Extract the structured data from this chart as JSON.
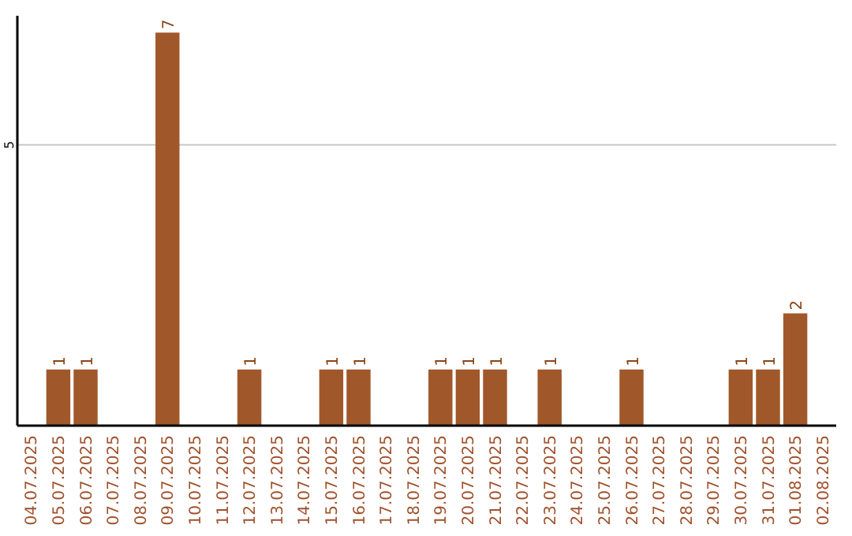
{
  "chart_data": {
    "type": "bar",
    "categories": [
      "04.07.2025",
      "05.07.2025",
      "06.07.2025",
      "07.07.2025",
      "08.07.2025",
      "09.07.2025",
      "10.07.2025",
      "11.07.2025",
      "12.07.2025",
      "13.07.2025",
      "14.07.2025",
      "15.07.2025",
      "16.07.2025",
      "17.07.2025",
      "18.07.2025",
      "19.07.2025",
      "20.07.2025",
      "21.07.2025",
      "22.07.2025",
      "23.07.2025",
      "24.07.2025",
      "25.07.2025",
      "26.07.2025",
      "27.07.2025",
      "28.07.2025",
      "29.07.2025",
      "30.07.2025",
      "31.07.2025",
      "01.08.2025",
      "02.08.2025"
    ],
    "values": [
      null,
      1,
      1,
      null,
      null,
      7,
      null,
      null,
      1,
      null,
      null,
      1,
      1,
      null,
      null,
      1,
      1,
      1,
      null,
      1,
      null,
      null,
      1,
      null,
      null,
      null,
      1,
      1,
      2,
      null
    ],
    "color": "#a0582a",
    "ylim": [
      0,
      7.3
    ],
    "yticks": [
      5
    ],
    "grid": "y",
    "data_labels": true
  }
}
